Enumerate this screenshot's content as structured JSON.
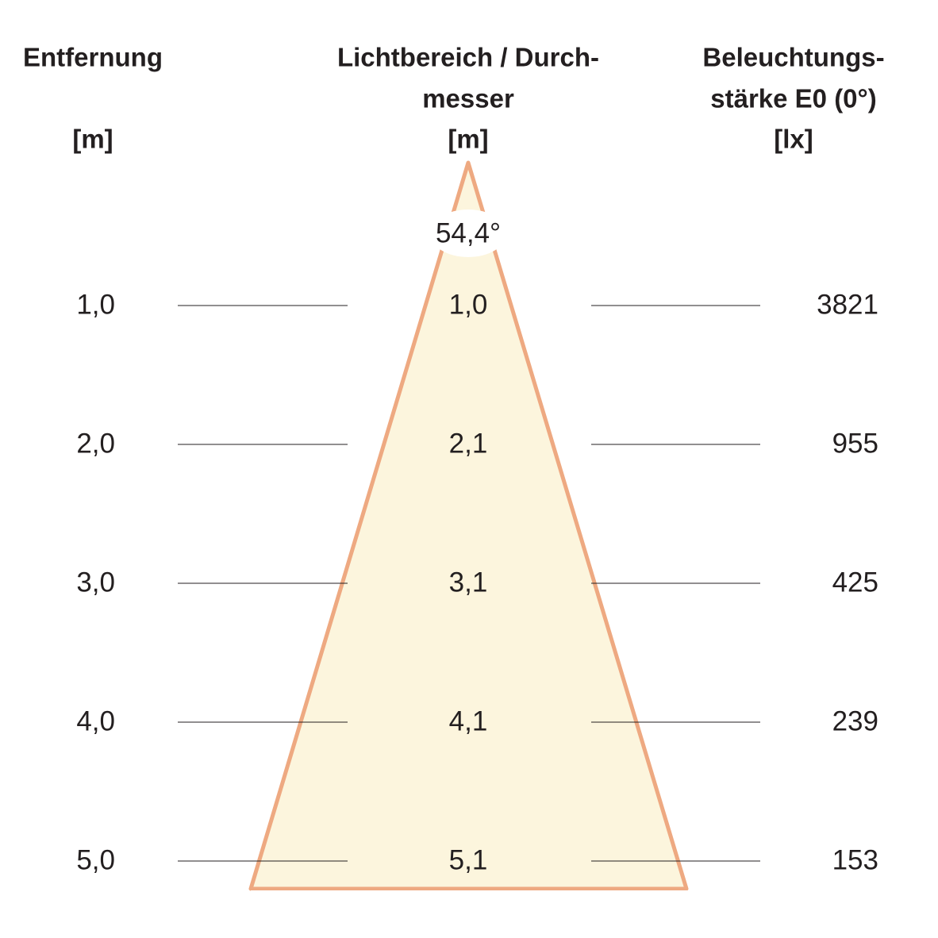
{
  "headers": {
    "distance": [
      "Entfernung",
      "[m]"
    ],
    "diameter": [
      "Lichtbereich / Durch-",
      "messer",
      "[m]"
    ],
    "illuminance": [
      "Beleuchtungs-",
      "stärke E0 (0°)",
      "[lx]"
    ]
  },
  "angle": "54,4°",
  "rows": [
    {
      "distance": "1,0",
      "diameter": "1,0",
      "illuminance": "3821"
    },
    {
      "distance": "2,0",
      "diameter": "2,1",
      "illuminance": "955"
    },
    {
      "distance": "3,0",
      "diameter": "3,1",
      "illuminance": "425"
    },
    {
      "distance": "4,0",
      "diameter": "4,1",
      "illuminance": "239"
    },
    {
      "distance": "5,0",
      "diameter": "5,1",
      "illuminance": "153"
    }
  ]
}
